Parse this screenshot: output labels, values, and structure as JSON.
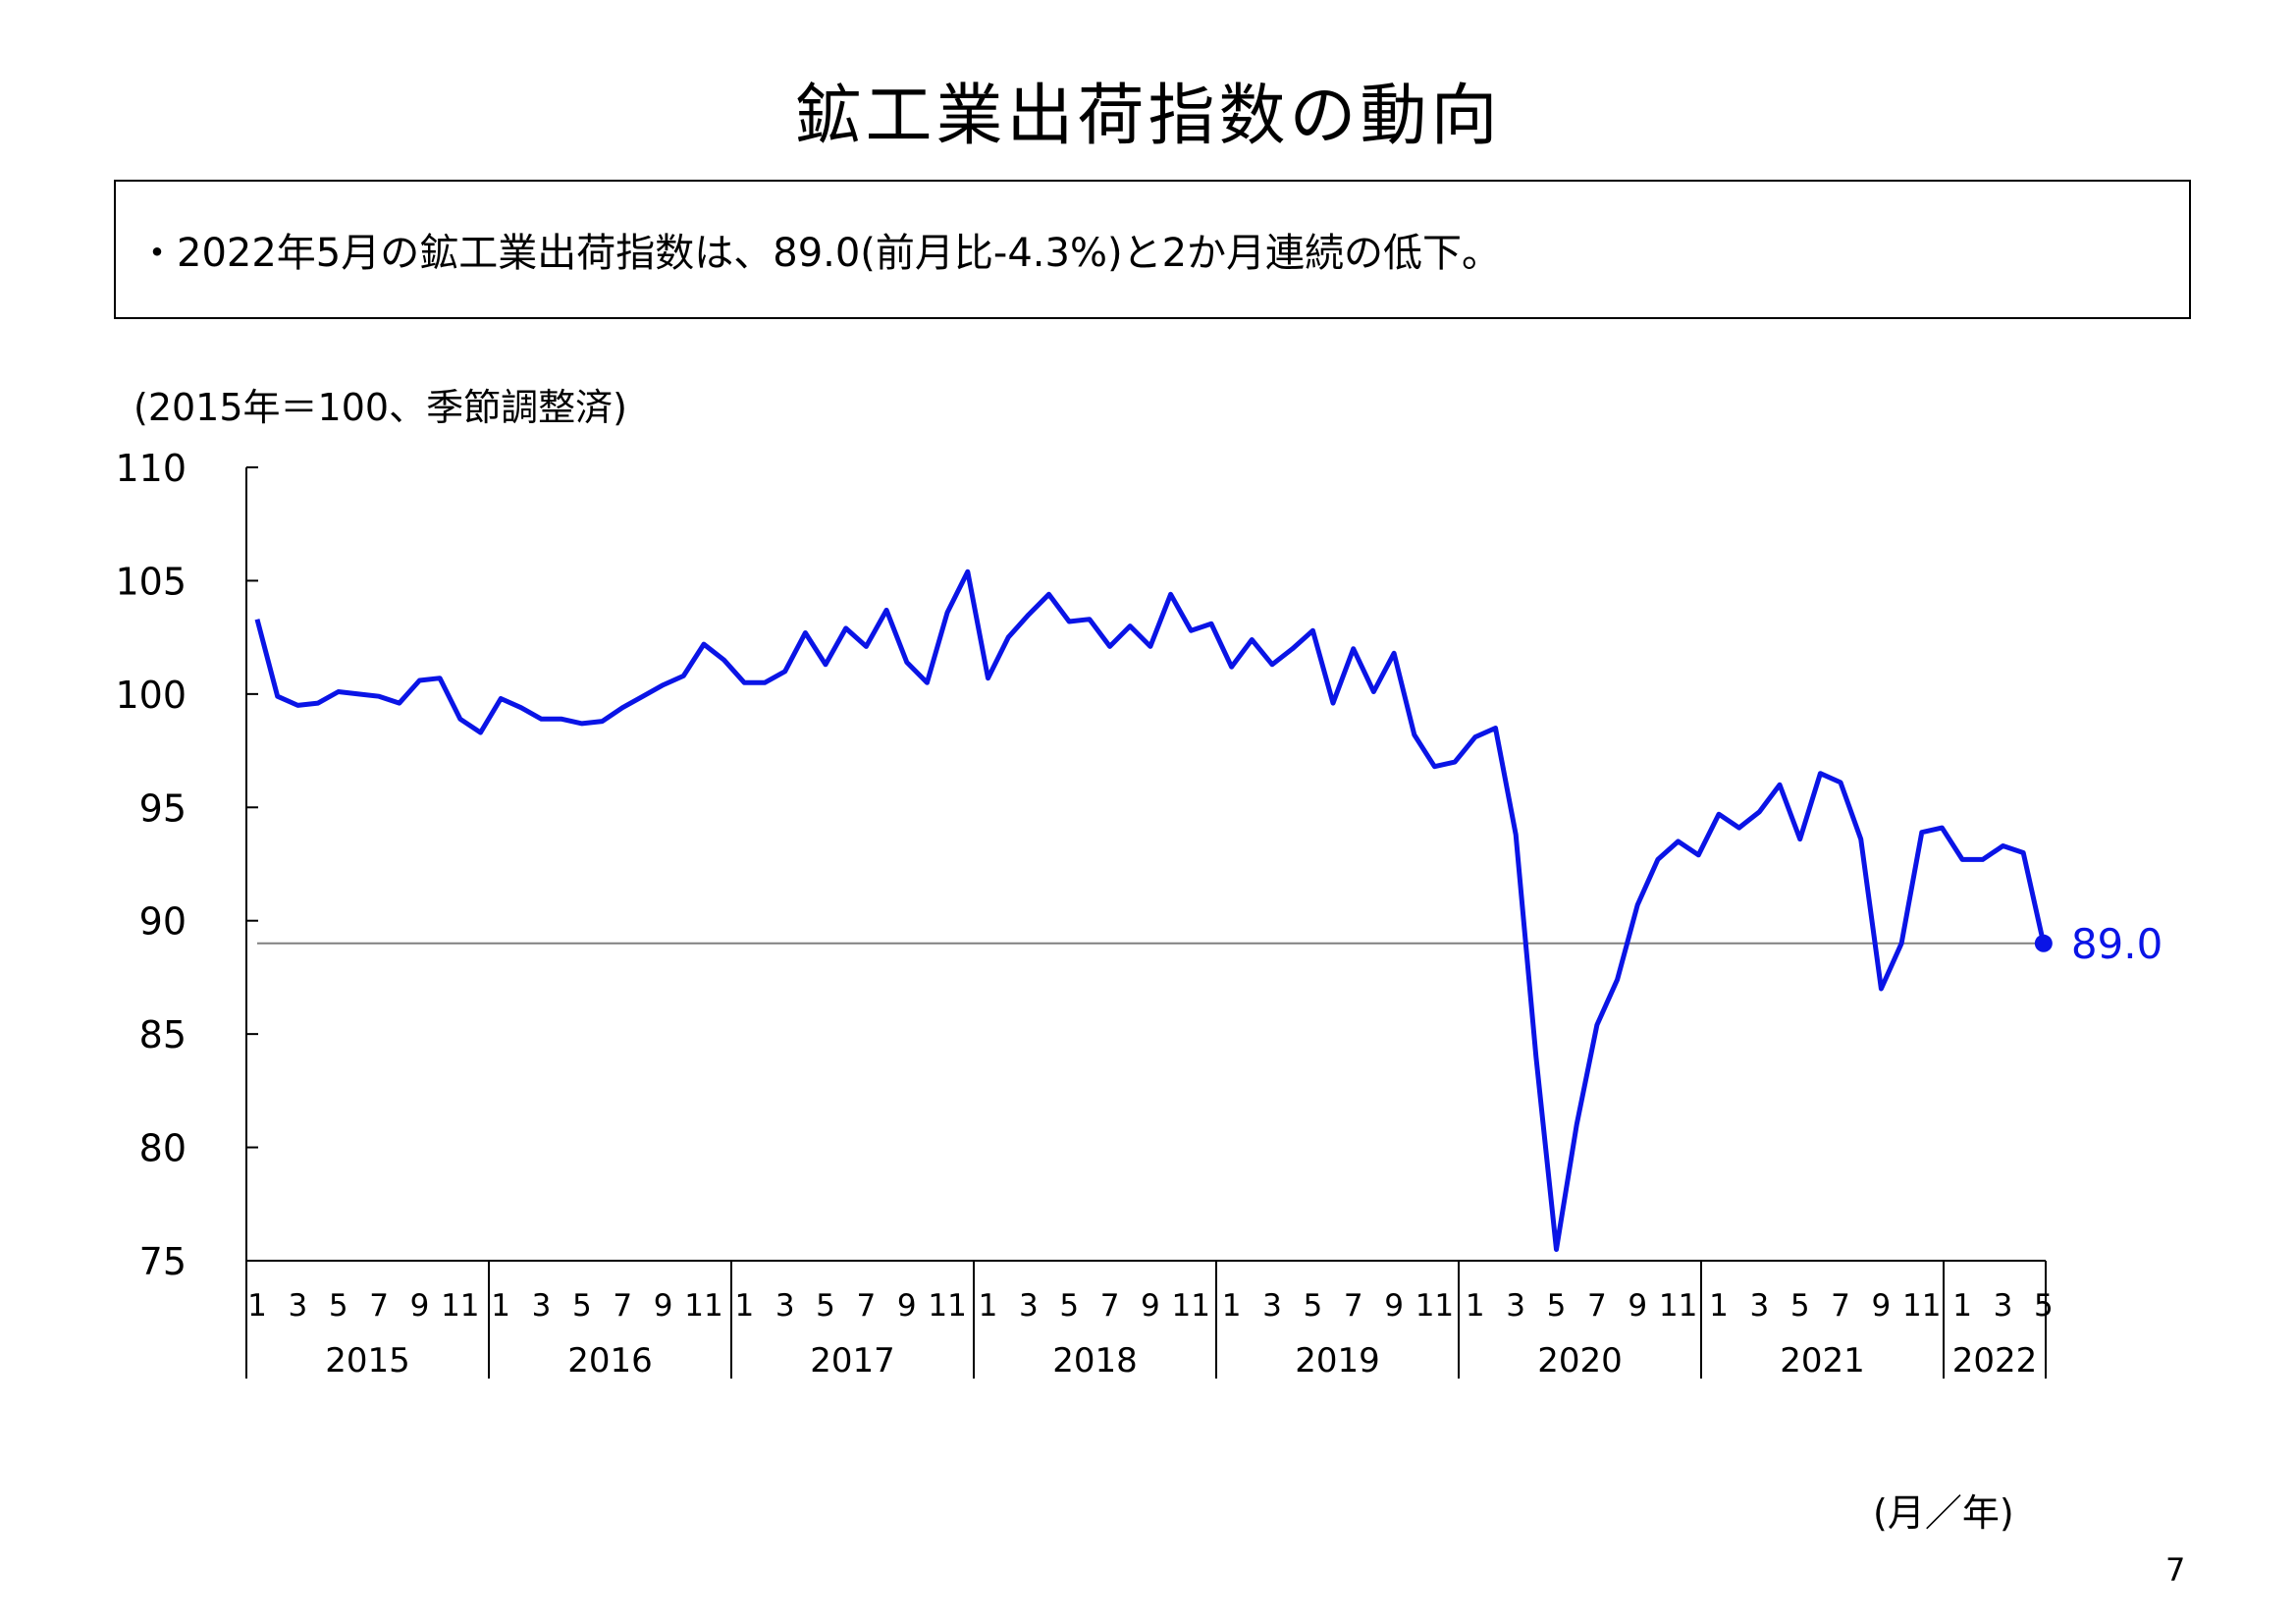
{
  "title": "鉱工業出荷指数の動向",
  "summary": "・2022年5月の鉱工業出荷指数は、89.0(前月比-4.3%)と2か月連続の低下。",
  "unit_note": "(2015年＝100、季節調整済)",
  "xaxis_unit": "(月／年)",
  "page_number": "7",
  "colors": {
    "series": "#0a14e6",
    "reference_line": "#808080",
    "axis": "#000000"
  },
  "chart_data": {
    "type": "line",
    "title": "鉱工業出荷指数の動向",
    "ylabel": "(2015年＝100、季節調整済)",
    "xlabel": "(月／年)",
    "ylim": [
      75,
      110
    ],
    "yticks": [
      "110",
      "105",
      "100",
      "95",
      "90",
      "85",
      "80",
      "75"
    ],
    "years": [
      "2015",
      "2016",
      "2017",
      "2018",
      "2019",
      "2020",
      "2021",
      "2022"
    ],
    "month_ticks": [
      "1",
      "3",
      "5",
      "7",
      "9",
      "11"
    ],
    "month_ticks_last_year": [
      "1",
      "3",
      "5"
    ],
    "grid": false,
    "reference_line_value": 89.0,
    "last_value_label": "89.0",
    "series": [
      {
        "values": [
          103.3,
          99.9,
          99.5,
          99.6,
          100.1,
          100.0,
          99.9,
          99.6,
          100.6,
          100.7,
          98.9,
          98.3,
          99.8,
          99.4,
          98.9,
          98.9,
          98.7,
          98.8,
          99.4,
          99.9,
          100.4,
          100.8,
          102.2,
          101.5,
          100.5,
          100.5,
          101.0,
          102.7,
          101.3,
          102.9,
          102.1,
          103.7,
          101.4,
          100.5,
          103.6,
          105.4,
          100.7,
          102.5,
          103.5,
          104.4,
          103.2,
          103.3,
          102.1,
          103.0,
          102.1,
          104.4,
          102.8,
          103.1,
          101.2,
          102.4,
          101.3,
          102.0,
          102.8,
          99.6,
          102.0,
          100.1,
          101.8,
          98.2,
          96.8,
          97.0,
          98.1,
          98.5,
          93.8,
          84.0,
          75.5,
          81.0,
          85.4,
          87.4,
          90.7,
          92.7,
          93.5,
          92.9,
          94.7,
          94.1,
          94.8,
          96.0,
          93.6,
          96.5,
          96.1,
          93.6,
          87.0,
          89.0,
          93.9,
          94.1,
          92.7,
          92.7,
          93.3,
          93.0,
          89.0
        ]
      }
    ]
  }
}
